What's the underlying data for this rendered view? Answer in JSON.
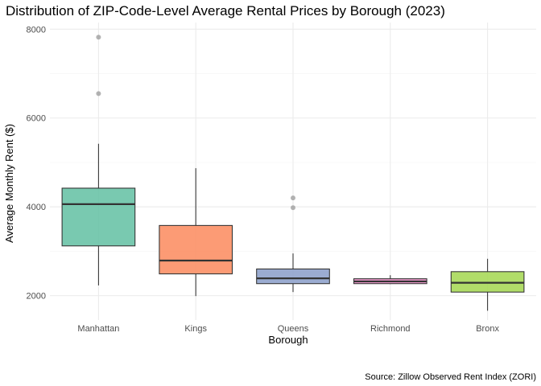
{
  "chart_data": {
    "type": "boxplot",
    "title": "Distribution of ZIP-Code-Level Average Rental Prices by Borough (2023)",
    "xlabel": "Borough",
    "ylabel": "Average Monthly Rent ($)",
    "caption": "Source: Zillow Observed Rent Index (ZORI)",
    "ylim": [
      1450,
      8150
    ],
    "yticks": [
      2000,
      4000,
      6000,
      8000
    ],
    "ytick_labels": [
      "2000",
      "4000",
      "6000",
      "8000"
    ],
    "grid": true,
    "legend": "none",
    "categories": [
      {
        "label": "Manhattan",
        "color": "#66c2a5",
        "whisker_low": 2230,
        "q1": 3120,
        "median": 4060,
        "q3": 4420,
        "whisker_high": 5420,
        "outliers": [
          6550,
          7820
        ]
      },
      {
        "label": "Kings",
        "color": "#fc8d62",
        "whisker_low": 1990,
        "q1": 2490,
        "median": 2790,
        "q3": 3580,
        "whisker_high": 4870,
        "outliers": []
      },
      {
        "label": "Queens",
        "color": "#8da0cb",
        "whisker_low": 2080,
        "q1": 2270,
        "median": 2390,
        "q3": 2600,
        "whisker_high": 2950,
        "outliers": [
          3980,
          4200
        ]
      },
      {
        "label": "Richmond",
        "color": "#e78ac3",
        "whisker_low": 2260,
        "q1": 2270,
        "median": 2320,
        "q3": 2380,
        "whisker_high": 2460,
        "outliers": []
      },
      {
        "label": "Bronx",
        "color": "#a6d854",
        "whisker_low": 1660,
        "q1": 2080,
        "median": 2290,
        "q3": 2540,
        "whisker_high": 2830,
        "outliers": []
      }
    ]
  }
}
